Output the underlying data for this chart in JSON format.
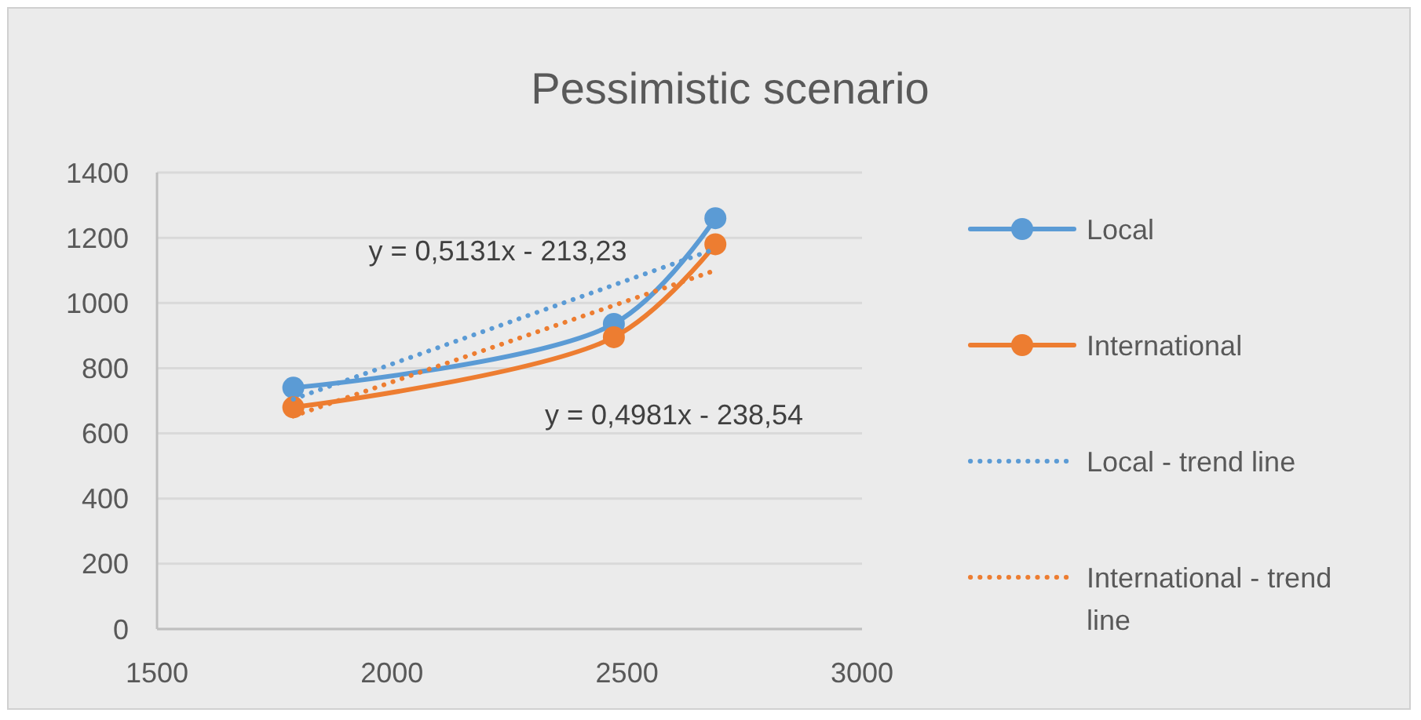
{
  "chart_data": {
    "type": "line",
    "title": "Pessimistic scenario",
    "xlim": [
      1500,
      3000
    ],
    "xticks": [
      1500,
      2000,
      2500,
      3000
    ],
    "ylim": [
      0,
      1400
    ],
    "yticks": [
      0,
      200,
      400,
      600,
      800,
      1000,
      1200,
      1400
    ],
    "grid": "y",
    "legend": "right",
    "marker": "circle",
    "series": [
      {
        "name": "Local",
        "color": "#5b9bd5",
        "x": [
          1790,
          2472,
          2688
        ],
        "values": [
          740,
          936,
          1260
        ]
      },
      {
        "name": "International",
        "color": "#ed7d31",
        "x": [
          1790,
          2472,
          2688
        ],
        "values": [
          680,
          895,
          1180
        ]
      },
      {
        "name": "Local - trend line",
        "color": "#5b9bd5",
        "x": [
          1790,
          2688
        ],
        "values": [
          705,
          1166
        ],
        "marker": "none",
        "line_style": "dotted"
      },
      {
        "name": "International - trend line",
        "color": "#ed7d31",
        "x": [
          1790,
          2688
        ],
        "values": [
          653,
          1100
        ],
        "marker": "none",
        "line_style": "dotted"
      }
    ],
    "annotations": [
      "y = 0,5131x - 213,23",
      "y = 0,4981x - 238,54"
    ]
  }
}
